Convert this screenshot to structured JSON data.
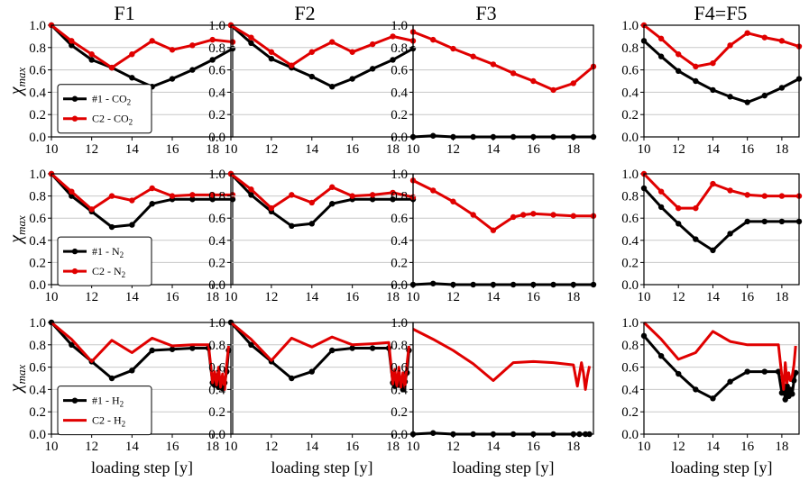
{
  "figure": {
    "col_titles": [
      "F1",
      "F2",
      "F3",
      "F4=F5"
    ],
    "ylabel": "χ",
    "ylabel_sub": "max",
    "xlabel": "loading step [y]",
    "xticks": [
      "10",
      "12",
      "14",
      "16",
      "18"
    ],
    "yticks": [
      "0.0",
      "0.2",
      "0.4",
      "0.6",
      "0.8",
      "1.0"
    ],
    "colors": {
      "black": "#000000",
      "red": "#e00000",
      "grid": "#c8c8c8"
    }
  },
  "chart_data": [
    {
      "type": "line",
      "row": 0,
      "col": 0,
      "title": "F1",
      "xlim": [
        10,
        19
      ],
      "ylim": [
        0,
        1
      ],
      "grid": true,
      "legend": {
        "position": "center-left",
        "entries": [
          {
            "main": "#1 - CO",
            "sub": "2",
            "series": 0
          },
          {
            "main": "C2 - CO",
            "sub": "2",
            "series": 1
          }
        ]
      },
      "series": [
        {
          "name": "#1 - CO2",
          "color": "#000000",
          "markers": true,
          "x": [
            10,
            11,
            12,
            13,
            14,
            15,
            16,
            17,
            18,
            19
          ],
          "y": [
            1.0,
            0.82,
            0.69,
            0.62,
            0.53,
            0.45,
            0.52,
            0.6,
            0.69,
            0.79
          ]
        },
        {
          "name": "C2 - CO2",
          "color": "#e00000",
          "markers": true,
          "x": [
            10,
            11,
            12,
            13,
            14,
            15,
            16,
            17,
            18,
            19
          ],
          "y": [
            1.0,
            0.86,
            0.74,
            0.62,
            0.74,
            0.86,
            0.78,
            0.82,
            0.87,
            0.85
          ]
        }
      ]
    },
    {
      "type": "line",
      "row": 0,
      "col": 1,
      "title": "F2",
      "xlim": [
        10,
        19
      ],
      "ylim": [
        0,
        1
      ],
      "grid": true,
      "series": [
        {
          "name": "#1 - CO2",
          "color": "#000000",
          "markers": true,
          "x": [
            10,
            11,
            12,
            13,
            14,
            15,
            16,
            17,
            18,
            19
          ],
          "y": [
            1.0,
            0.84,
            0.7,
            0.62,
            0.54,
            0.45,
            0.52,
            0.61,
            0.69,
            0.79
          ]
        },
        {
          "name": "C2 - CO2",
          "color": "#e00000",
          "markers": true,
          "x": [
            10,
            11,
            12,
            13,
            14,
            15,
            16,
            17,
            18,
            19
          ],
          "y": [
            1.0,
            0.89,
            0.76,
            0.64,
            0.76,
            0.85,
            0.76,
            0.83,
            0.9,
            0.86
          ]
        }
      ]
    },
    {
      "type": "line",
      "row": 0,
      "col": 2,
      "title": "F3",
      "xlim": [
        10,
        19
      ],
      "ylim": [
        0,
        1
      ],
      "grid": true,
      "series": [
        {
          "name": "#1 - CO2",
          "color": "#000000",
          "markers": true,
          "x": [
            10,
            11,
            12,
            13,
            14,
            15,
            16,
            17,
            18,
            19
          ],
          "y": [
            0.0,
            0.01,
            0.0,
            0.0,
            0.0,
            0.0,
            0.0,
            0.0,
            0.0,
            0.0
          ]
        },
        {
          "name": "C2 - CO2",
          "color": "#e00000",
          "markers": true,
          "x": [
            10,
            11,
            12,
            13,
            14,
            15,
            16,
            17,
            18,
            19
          ],
          "y": [
            0.94,
            0.87,
            0.79,
            0.72,
            0.65,
            0.57,
            0.5,
            0.42,
            0.48,
            0.63
          ]
        }
      ]
    },
    {
      "type": "line",
      "row": 0,
      "col": 3,
      "title": "F4=F5",
      "xlim": [
        10,
        19
      ],
      "ylim": [
        0,
        1
      ],
      "grid": true,
      "series": [
        {
          "name": "#1 - CO2",
          "color": "#000000",
          "markers": true,
          "x": [
            10,
            11,
            12,
            13,
            14,
            15,
            16,
            17,
            18,
            19
          ],
          "y": [
            0.86,
            0.72,
            0.59,
            0.5,
            0.42,
            0.36,
            0.31,
            0.37,
            0.44,
            0.52
          ]
        },
        {
          "name": "C2 - CO2",
          "color": "#e00000",
          "markers": true,
          "x": [
            10,
            11,
            12,
            13,
            14,
            15,
            16,
            17,
            18,
            19
          ],
          "y": [
            1.0,
            0.88,
            0.74,
            0.63,
            0.66,
            0.82,
            0.93,
            0.89,
            0.86,
            0.81
          ]
        }
      ]
    },
    {
      "type": "line",
      "row": 1,
      "col": 0,
      "xlim": [
        10,
        19
      ],
      "ylim": [
        0,
        1
      ],
      "grid": true,
      "legend": {
        "position": "lower-left",
        "entries": [
          {
            "main": "#1 - N",
            "sub": "2",
            "series": 0
          },
          {
            "main": "C2 - N",
            "sub": "2",
            "series": 1
          }
        ]
      },
      "series": [
        {
          "name": "#1 - N2",
          "color": "#000000",
          "markers": true,
          "x": [
            10,
            11,
            12,
            13,
            14,
            15,
            16,
            17,
            18,
            19
          ],
          "y": [
            1.0,
            0.8,
            0.66,
            0.52,
            0.54,
            0.73,
            0.77,
            0.77,
            0.77,
            0.77
          ]
        },
        {
          "name": "C2 - N2",
          "color": "#e00000",
          "markers": true,
          "x": [
            10,
            11,
            12,
            13,
            14,
            15,
            16,
            17,
            18,
            19
          ],
          "y": [
            1.0,
            0.84,
            0.68,
            0.8,
            0.76,
            0.87,
            0.8,
            0.81,
            0.81,
            0.81
          ]
        }
      ]
    },
    {
      "type": "line",
      "row": 1,
      "col": 1,
      "xlim": [
        10,
        19
      ],
      "ylim": [
        0,
        1
      ],
      "grid": true,
      "series": [
        {
          "name": "#1 - N2",
          "color": "#000000",
          "markers": true,
          "x": [
            10,
            11,
            12,
            13,
            14,
            15,
            16,
            17,
            18,
            19
          ],
          "y": [
            1.0,
            0.81,
            0.66,
            0.53,
            0.55,
            0.73,
            0.77,
            0.77,
            0.77,
            0.77
          ]
        },
        {
          "name": "C2 - N2",
          "color": "#e00000",
          "markers": true,
          "x": [
            10,
            11,
            12,
            13,
            14,
            15,
            16,
            17,
            18,
            19
          ],
          "y": [
            1.0,
            0.86,
            0.69,
            0.81,
            0.74,
            0.88,
            0.8,
            0.81,
            0.83,
            0.79
          ]
        }
      ]
    },
    {
      "type": "line",
      "row": 1,
      "col": 2,
      "xlim": [
        10,
        19
      ],
      "ylim": [
        0,
        1
      ],
      "grid": true,
      "series": [
        {
          "name": "#1 - N2",
          "color": "#000000",
          "markers": true,
          "x": [
            10,
            11,
            12,
            13,
            14,
            15,
            16,
            17,
            18,
            19
          ],
          "y": [
            0.0,
            0.01,
            0.0,
            0.0,
            0.0,
            0.0,
            0.0,
            0.0,
            0.0,
            0.0
          ]
        },
        {
          "name": "C2 - N2",
          "color": "#e00000",
          "markers": true,
          "x": [
            10,
            11,
            12,
            13,
            14,
            15,
            15.5,
            16,
            17,
            18,
            19
          ],
          "y": [
            0.94,
            0.85,
            0.75,
            0.63,
            0.49,
            0.61,
            0.63,
            0.64,
            0.63,
            0.62,
            0.62
          ]
        }
      ]
    },
    {
      "type": "line",
      "row": 1,
      "col": 3,
      "xlim": [
        10,
        19
      ],
      "ylim": [
        0,
        1
      ],
      "grid": true,
      "series": [
        {
          "name": "#1 - N2",
          "color": "#000000",
          "markers": true,
          "x": [
            10,
            11,
            12,
            13,
            14,
            15,
            16,
            17,
            18,
            19
          ],
          "y": [
            0.87,
            0.7,
            0.55,
            0.41,
            0.31,
            0.46,
            0.57,
            0.57,
            0.57,
            0.57
          ]
        },
        {
          "name": "C2 - N2",
          "color": "#e00000",
          "markers": true,
          "x": [
            10,
            11,
            12,
            13,
            14,
            15,
            16,
            17,
            18,
            19
          ],
          "y": [
            1.0,
            0.84,
            0.69,
            0.69,
            0.91,
            0.85,
            0.81,
            0.8,
            0.8,
            0.8
          ]
        }
      ]
    },
    {
      "type": "line",
      "row": 2,
      "col": 0,
      "xlim": [
        10,
        19
      ],
      "ylim": [
        0,
        1
      ],
      "grid": true,
      "legend": {
        "position": "lower-left",
        "entries": [
          {
            "main": "#1 - H",
            "sub": "2",
            "series": 0
          },
          {
            "main": "C2 - H",
            "sub": "2",
            "series": 1
          }
        ]
      },
      "series": [
        {
          "name": "#1 - H2",
          "color": "#000000",
          "markers": true,
          "x": [
            10,
            11,
            12,
            13,
            14,
            15,
            16,
            17,
            17.8,
            18,
            18.1,
            18.2,
            18.3,
            18.4,
            18.5,
            18.6,
            18.7,
            18.8
          ],
          "y": [
            1.0,
            0.8,
            0.65,
            0.5,
            0.57,
            0.75,
            0.76,
            0.77,
            0.77,
            0.46,
            0.44,
            0.52,
            0.42,
            0.47,
            0.41,
            0.46,
            0.56,
            0.75
          ]
        },
        {
          "name": "C2 - H2",
          "color": "#e00000",
          "markers": false,
          "x": [
            10,
            11,
            12,
            13,
            14,
            15,
            16,
            17,
            17.8,
            18,
            18.1,
            18.2,
            18.3,
            18.4,
            18.5,
            18.6,
            18.7,
            18.8
          ],
          "y": [
            1.0,
            0.85,
            0.65,
            0.84,
            0.73,
            0.86,
            0.79,
            0.8,
            0.8,
            0.46,
            0.56,
            0.44,
            0.6,
            0.42,
            0.54,
            0.4,
            0.62,
            0.79
          ]
        }
      ]
    },
    {
      "type": "line",
      "row": 2,
      "col": 1,
      "xlim": [
        10,
        19
      ],
      "ylim": [
        0,
        1
      ],
      "grid": true,
      "series": [
        {
          "name": "#1 - H2",
          "color": "#000000",
          "markers": true,
          "x": [
            10,
            11,
            12,
            13,
            14,
            15,
            16,
            17,
            17.8,
            18,
            18.1,
            18.2,
            18.3,
            18.4,
            18.5,
            18.6,
            18.7,
            18.8
          ],
          "y": [
            1.0,
            0.8,
            0.65,
            0.5,
            0.56,
            0.75,
            0.77,
            0.77,
            0.77,
            0.46,
            0.43,
            0.51,
            0.44,
            0.46,
            0.4,
            0.47,
            0.55,
            0.75
          ]
        },
        {
          "name": "C2 - H2",
          "color": "#e00000",
          "markers": false,
          "x": [
            10,
            11,
            12,
            13,
            14,
            15,
            16,
            17,
            17.8,
            18,
            18.1,
            18.2,
            18.3,
            18.4,
            18.5,
            18.6,
            18.7,
            18.8
          ],
          "y": [
            1.0,
            0.85,
            0.66,
            0.86,
            0.78,
            0.87,
            0.8,
            0.81,
            0.82,
            0.45,
            0.58,
            0.43,
            0.6,
            0.42,
            0.55,
            0.42,
            0.63,
            0.79
          ]
        }
      ]
    },
    {
      "type": "line",
      "row": 2,
      "col": 2,
      "xlim": [
        10,
        19
      ],
      "ylim": [
        0,
        1
      ],
      "grid": true,
      "series": [
        {
          "name": "#1 - H2",
          "color": "#000000",
          "markers": true,
          "x": [
            10,
            11,
            12,
            13,
            14,
            15,
            16,
            17,
            18,
            18.3,
            18.6,
            18.8
          ],
          "y": [
            0.0,
            0.01,
            0.0,
            0.0,
            0.0,
            0.0,
            0.0,
            0.0,
            0.0,
            0.0,
            0.0,
            0.0
          ]
        },
        {
          "name": "C2 - H2",
          "color": "#e00000",
          "markers": false,
          "x": [
            10,
            11,
            12,
            13,
            14,
            15,
            16,
            17,
            18,
            18.2,
            18.4,
            18.5,
            18.6,
            18.7,
            18.8
          ],
          "y": [
            0.94,
            0.85,
            0.75,
            0.63,
            0.48,
            0.64,
            0.65,
            0.64,
            0.62,
            0.43,
            0.64,
            0.55,
            0.4,
            0.52,
            0.61
          ]
        }
      ]
    },
    {
      "type": "line",
      "row": 2,
      "col": 3,
      "xlim": [
        10,
        19
      ],
      "ylim": [
        0,
        1
      ],
      "grid": true,
      "series": [
        {
          "name": "#1 - H2",
          "color": "#000000",
          "markers": true,
          "x": [
            10,
            11,
            12,
            13,
            14,
            15,
            16,
            17,
            17.8,
            18,
            18.1,
            18.2,
            18.3,
            18.4,
            18.5,
            18.6,
            18.7,
            18.8
          ],
          "y": [
            0.88,
            0.7,
            0.54,
            0.4,
            0.32,
            0.47,
            0.56,
            0.56,
            0.56,
            0.37,
            0.42,
            0.31,
            0.43,
            0.34,
            0.4,
            0.36,
            0.48,
            0.55
          ]
        },
        {
          "name": "C2 - H2",
          "color": "#e00000",
          "markers": false,
          "x": [
            10,
            11,
            12,
            13,
            14,
            15,
            16,
            17,
            17.8,
            18,
            18.1,
            18.2,
            18.3,
            18.4,
            18.5,
            18.6,
            18.7,
            18.8
          ],
          "y": [
            1.0,
            0.85,
            0.67,
            0.73,
            0.92,
            0.83,
            0.8,
            0.8,
            0.8,
            0.52,
            0.4,
            0.64,
            0.46,
            0.55,
            0.48,
            0.52,
            0.62,
            0.79
          ]
        }
      ]
    }
  ]
}
